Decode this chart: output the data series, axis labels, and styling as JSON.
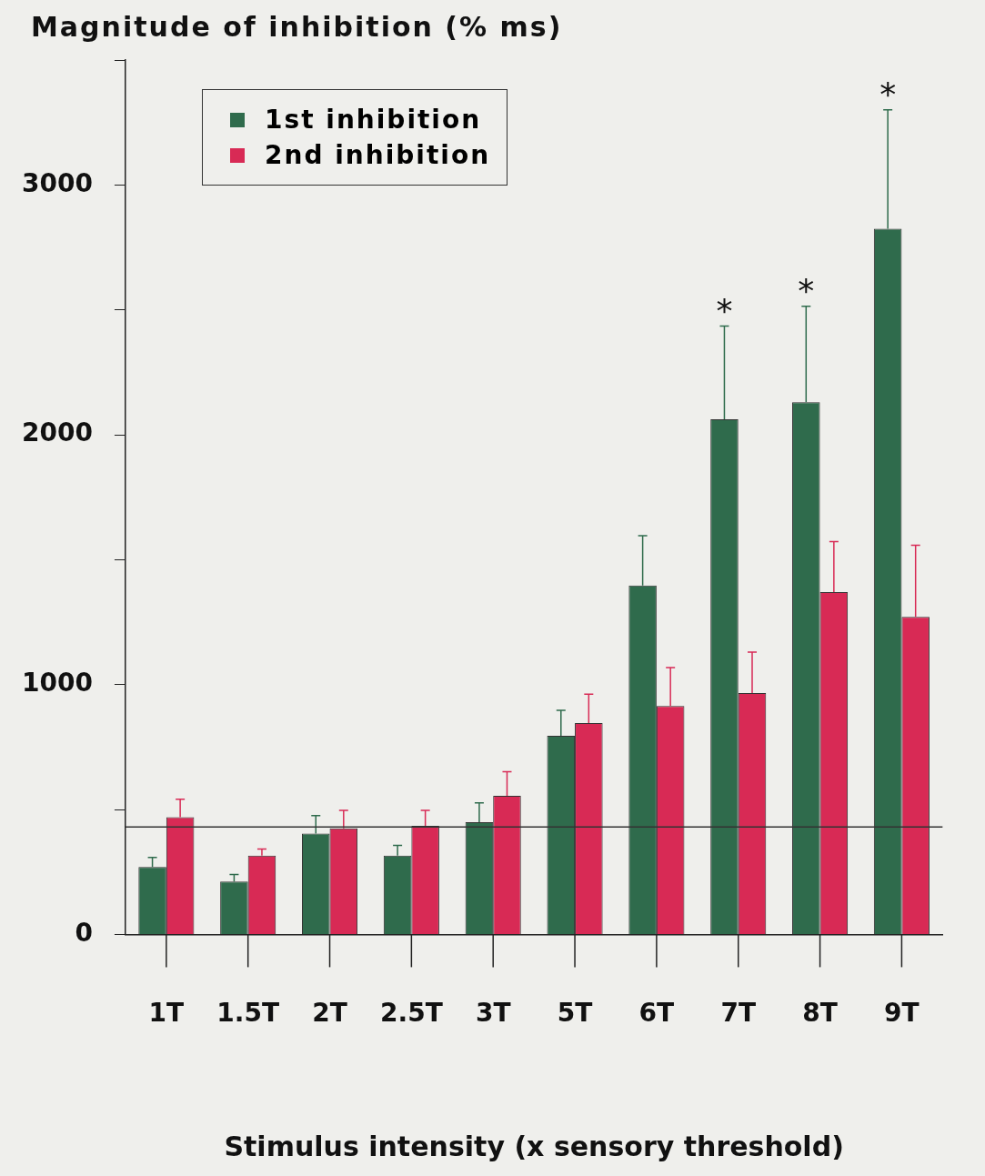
{
  "chart_data": {
    "type": "bar",
    "ylabel": "Magnitude of inhibition (% ms)",
    "xlabel": "Stimulus intensity (x sensory threshold)",
    "categories": [
      "1T",
      "1.5T",
      "2T",
      "2.5T",
      "3T",
      "5T",
      "6T",
      "7T",
      "8T",
      "9T"
    ],
    "series": [
      {
        "name": "1st inhibition",
        "color": "#2f6b4c",
        "values": [
          270,
          212,
          404,
          315,
          449,
          795,
          1397,
          2062,
          2130,
          2825
        ],
        "errors": [
          38,
          28,
          72,
          41,
          78,
          102,
          199,
          373,
          384,
          476
        ]
      },
      {
        "name": "2nd inhibition",
        "color": "#d82a55",
        "values": [
          469,
          315,
          425,
          435,
          555,
          846,
          914,
          966,
          1370,
          1271
        ],
        "errors": [
          72,
          27,
          72,
          62,
          96,
          116,
          154,
          164,
          202,
          287
        ]
      }
    ],
    "ylim": [
      0,
      3500
    ],
    "yticks": [
      0,
      {
        "value": 500,
        "label": null
      },
      1000,
      {
        "value": 1500,
        "label": null
      },
      2000,
      {
        "value": 2500,
        "label": null
      },
      3000,
      {
        "value": 3500,
        "label": null
      }
    ],
    "ref_lines": [
      {
        "axis": "y",
        "value": 430,
        "color": "#333333"
      }
    ],
    "annotations": [
      "*",
      "*",
      "*"
    ],
    "legend": "top left",
    "grid": false
  }
}
